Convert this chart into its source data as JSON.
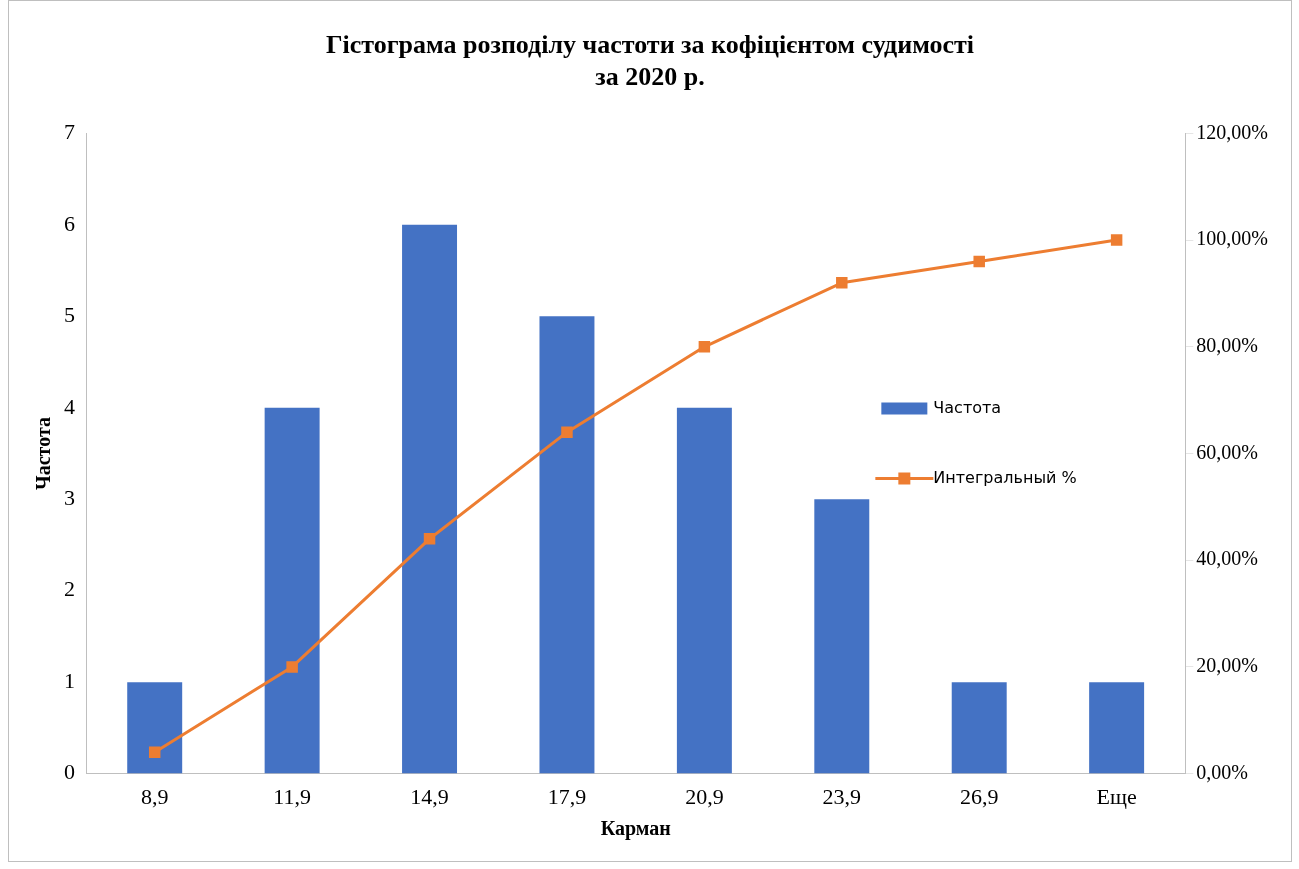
{
  "chart_data": {
    "type": "bar",
    "title": "Гістограма розподілу частоти за кофіцієнтом судимості\nза 2020 р.",
    "xlabel": "Карман",
    "ylabel": "Частота",
    "categories": [
      "8,9",
      "11,9",
      "14,9",
      "17,9",
      "20,9",
      "23,9",
      "26,9",
      "Еще"
    ],
    "series": [
      {
        "name": "Частота",
        "color": "#4472c4",
        "values": [
          1,
          4,
          6,
          5,
          4,
          3,
          1,
          1
        ]
      },
      {
        "name": "Интегральный %",
        "type": "line",
        "axis": "y2",
        "color": "#ed7d31",
        "values": [
          4,
          20,
          44,
          64,
          80,
          92,
          96,
          100
        ]
      }
    ],
    "ylim": [
      0,
      7
    ],
    "yticks": [
      0,
      1,
      2,
      3,
      4,
      5,
      6,
      7
    ],
    "y2lim": [
      0,
      120
    ],
    "y2ticks": [
      {
        "value": 0,
        "label": "0,00%"
      },
      {
        "value": 20,
        "label": "20,00%"
      },
      {
        "value": 40,
        "label": "40,00%"
      },
      {
        "value": 60,
        "label": "60,00%"
      },
      {
        "value": 80,
        "label": "80,00%"
      },
      {
        "value": 100,
        "label": "100,00%"
      },
      {
        "value": 120,
        "label": "120,00%"
      }
    ],
    "legend": "right",
    "marker": "square",
    "grid": false
  }
}
